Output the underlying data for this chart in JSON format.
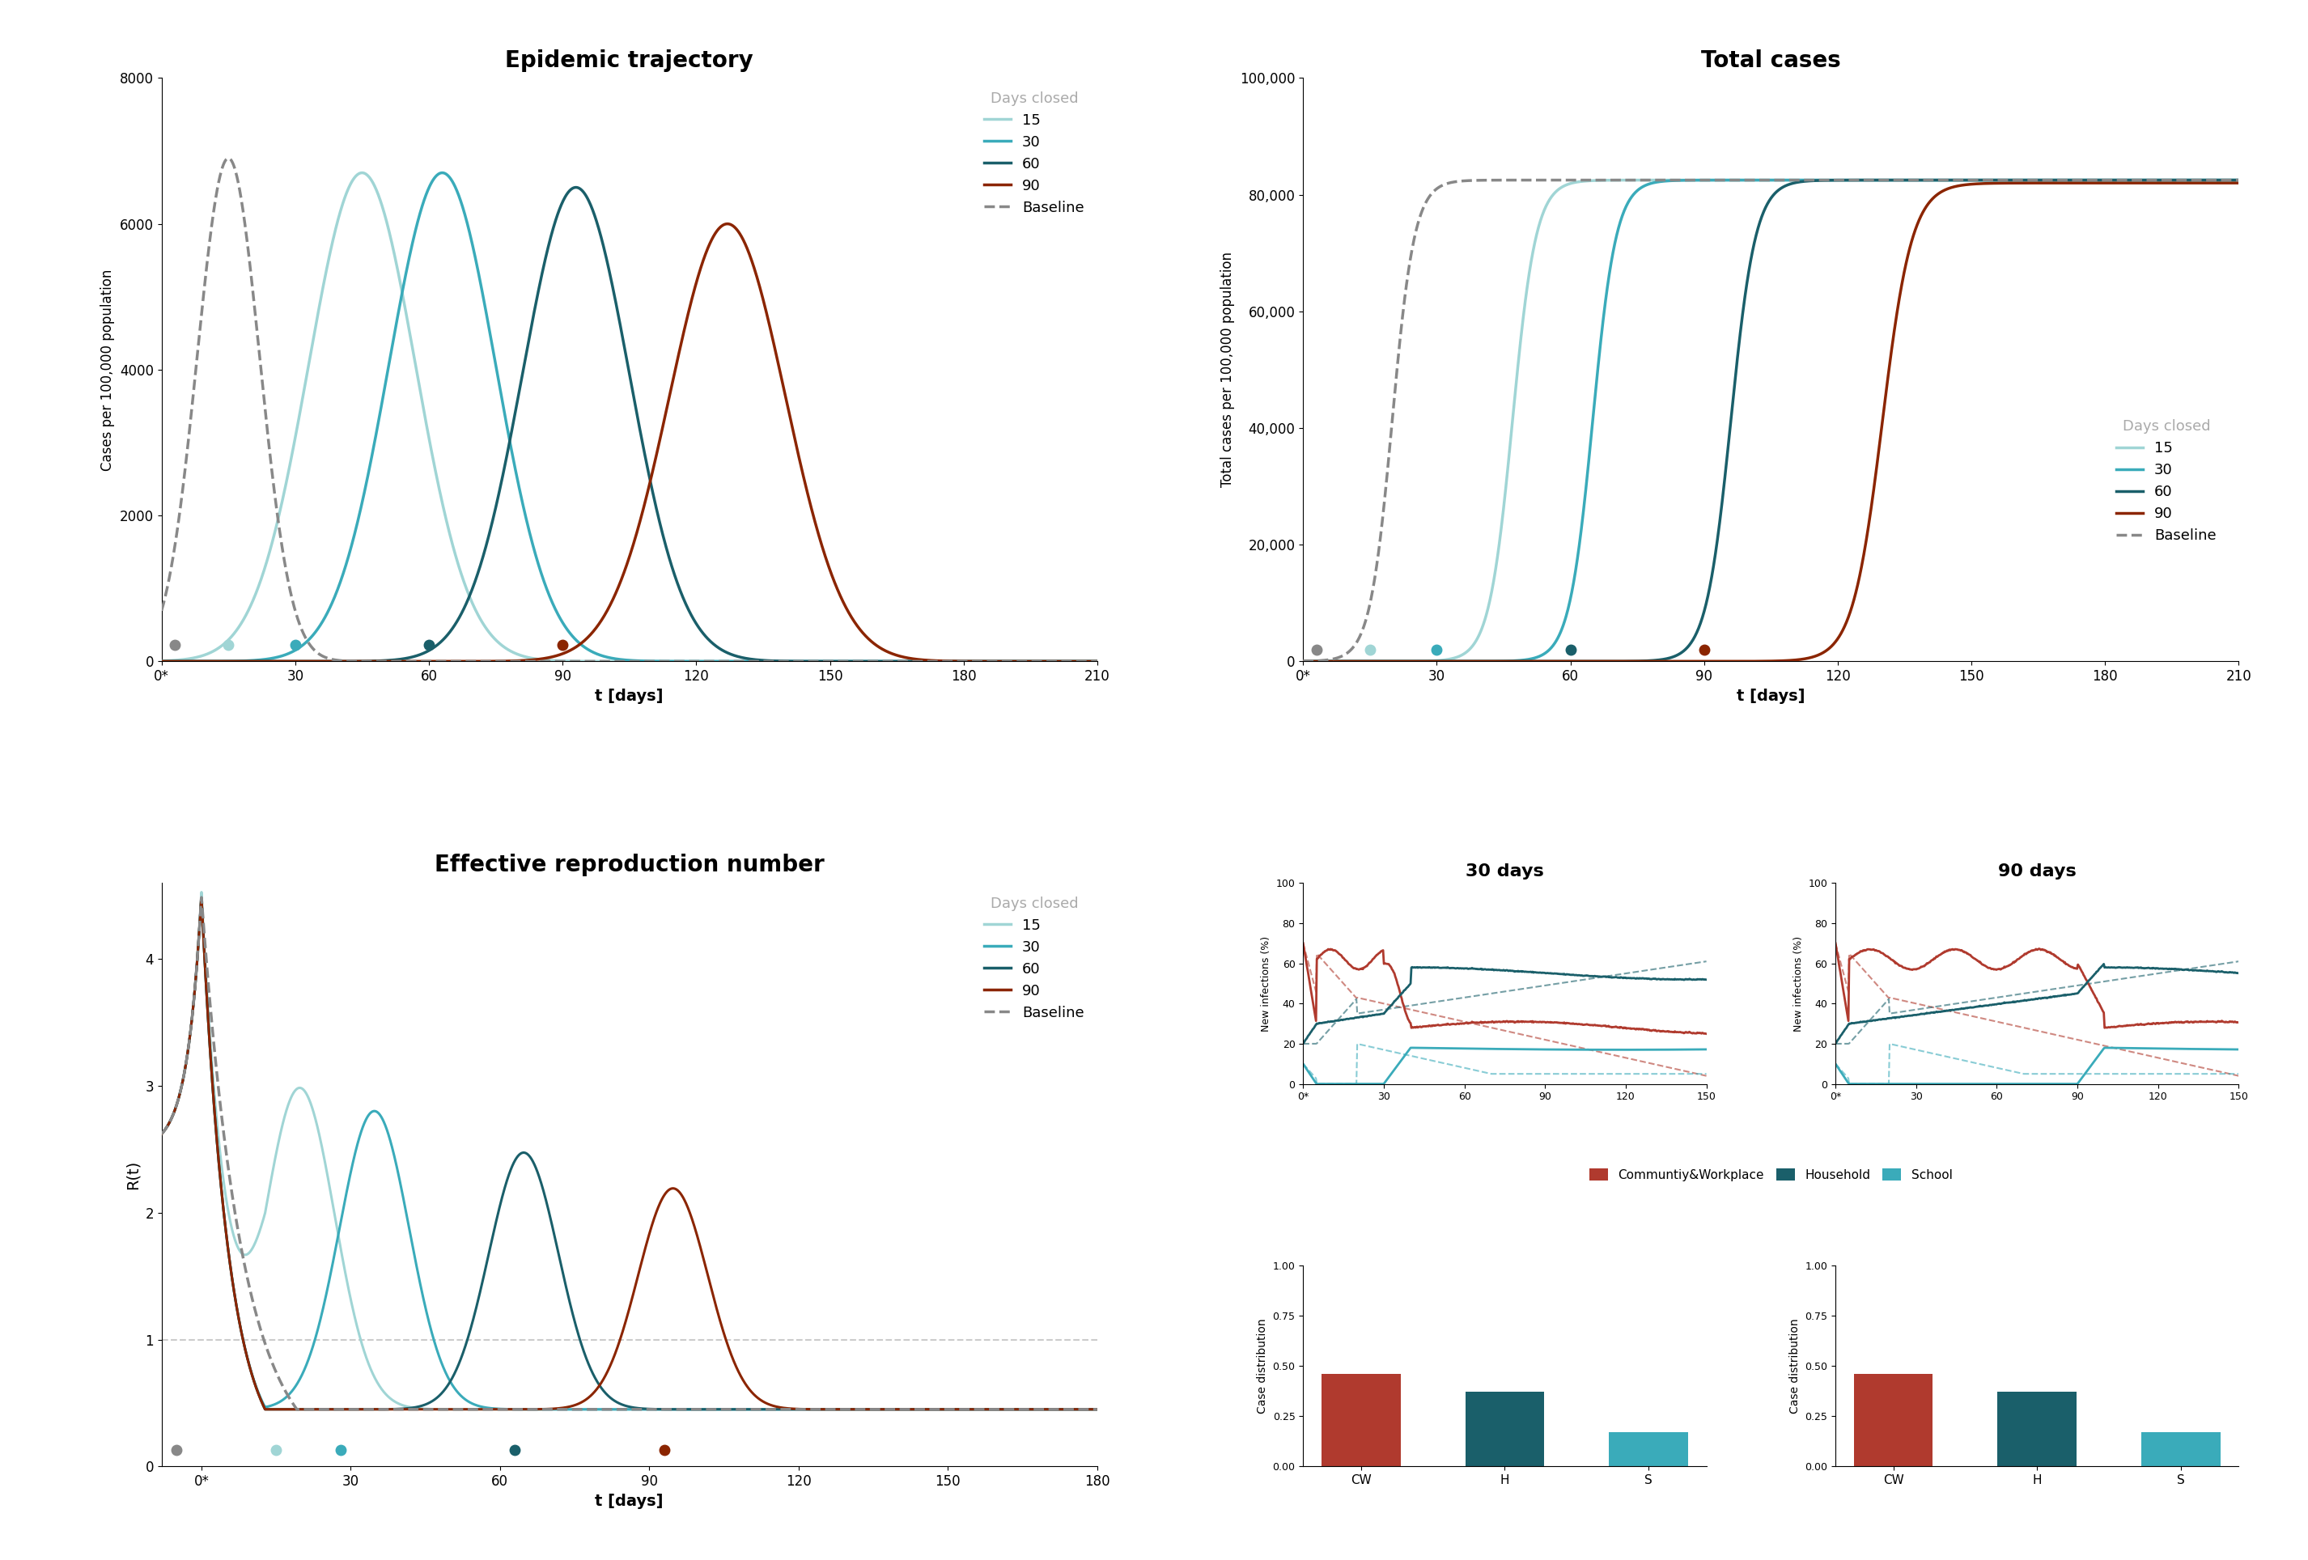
{
  "title_traj": "Epidemic trajectory",
  "title_total": "Total cases",
  "title_Rt": "Effective reproduction number",
  "title_30": "30 days",
  "title_90": "90 days",
  "xlabel": "t [days]",
  "ylabel_traj": "Cases per 100,000 population",
  "ylabel_total": "Total cases per 100,000 population",
  "ylabel_Rt": "R(t)",
  "ylabel_new_inf": "New infections (%)",
  "ylabel_case_dist": "Case distribution",
  "colors": {
    "15": "#a0d5d5",
    "30": "#3aabba",
    "60": "#1a5f6a",
    "90": "#8b2500",
    "baseline": "#888888"
  },
  "bar_xlabels": [
    "CW",
    "H",
    "S"
  ],
  "bar_colors_CW": "#b03a2e",
  "bar_colors_H": "#1a5f6a",
  "bar_colors_S": "#3aabba",
  "bar_30_values": [
    0.46,
    0.37,
    0.17
  ],
  "bar_90_values": [
    0.46,
    0.37,
    0.17
  ],
  "background_color": "#ffffff",
  "legend_title_color": "#aaaaaa",
  "hline_color": "#cccccc"
}
